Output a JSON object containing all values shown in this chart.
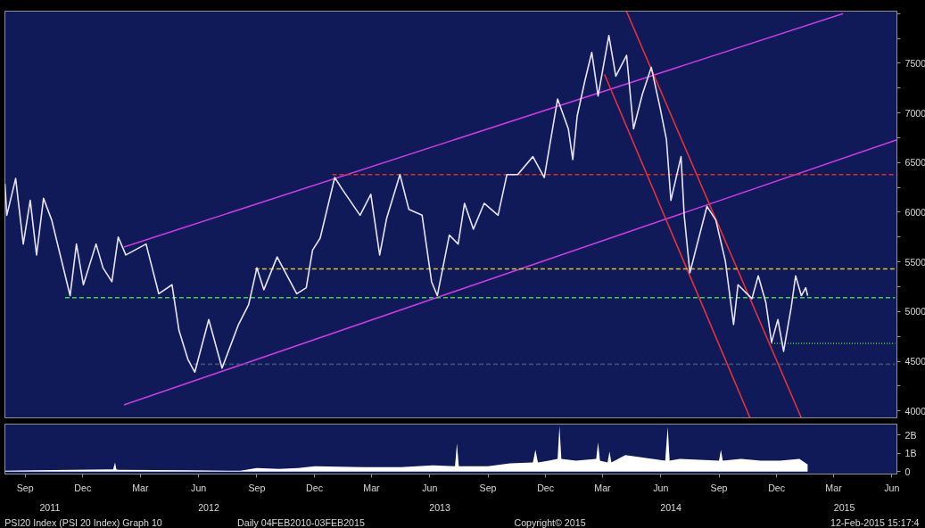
{
  "chart_data": [
    {
      "type": "line",
      "tick_labels": "y",
      "xlim": [
        "2011-08-14",
        "2015-06-23"
      ],
      "ylim": [
        3930,
        8025
      ],
      "yticks": [
        4000,
        {
          "value": 4250,
          "label": null
        },
        4500,
        {
          "value": 4750,
          "label": null
        },
        5000,
        {
          "value": 5250,
          "label": null
        },
        5500,
        {
          "value": 5750,
          "label": null
        },
        6000,
        {
          "value": 6250,
          "label": null
        },
        6500,
        {
          "value": 6750,
          "label": null
        },
        7000,
        {
          "value": 7250,
          "label": null
        },
        7500,
        {
          "value": 7750,
          "label": null
        },
        {
          "value": 8000,
          "label": null
        }
      ],
      "series": [
        {
          "type": "line",
          "color": "#c83ce0",
          "x": [
            "2012-02-18",
            "2015-03-30"
          ],
          "values": [
            5650,
            8000
          ]
        },
        {
          "type": "line",
          "color": "#c83ce0",
          "x": [
            "2012-02-18",
            "2015-06-23"
          ],
          "values": [
            4060,
            6730
          ]
        },
        {
          "type": "line",
          "color": "#e8303c",
          "x": [
            "2014-03-18",
            "2014-11-03"
          ],
          "values": [
            7390,
            3930
          ]
        },
        {
          "type": "line",
          "color": "#e8303c",
          "x": [
            "2014-04-22",
            "2015-01-23"
          ],
          "values": [
            8020,
            3930
          ]
        },
        {
          "type": "line",
          "color": "#d03030",
          "line_style": "dashed",
          "x": [
            "2013-01-12",
            "2015-06-20"
          ],
          "values": [
            6380,
            6380
          ]
        },
        {
          "type": "line",
          "color": "#d8c040",
          "line_style": "dashed",
          "x": [
            "2012-09-12",
            "2015-06-20"
          ],
          "values": [
            5430,
            5430
          ]
        },
        {
          "type": "line",
          "color": "#30e030",
          "line_style": "dashed",
          "x": [
            "2011-11-17",
            "2015-06-20"
          ],
          "values": [
            5140,
            5140
          ]
        },
        {
          "type": "line",
          "color": "#40e040",
          "line_style": "dotted",
          "x": [
            "2014-12-07",
            "2015-06-20"
          ],
          "values": [
            4680,
            4680
          ]
        },
        {
          "type": "line",
          "color": "#405070",
          "line_style": "dashed",
          "x": [
            "2012-06-07",
            "2015-06-20"
          ],
          "values": [
            4470,
            4470
          ]
        },
        {
          "type": "line",
          "color": "#e8e4f4",
          "x": [
            "2011-08-14",
            "2011-08-17",
            "2011-08-31",
            "2011-09-12",
            "2011-09-23",
            "2011-10-03",
            "2011-10-14",
            "2011-10-27",
            "2011-11-25",
            "2011-12-05",
            "2011-12-16",
            "2012-01-05",
            "2012-01-16",
            "2012-01-30",
            "2012-02-09",
            "2012-02-21",
            "2012-03-24",
            "2012-04-13",
            "2012-05-04",
            "2012-05-15",
            "2012-05-29",
            "2012-06-09",
            "2012-07-01",
            "2012-07-22",
            "2012-08-17",
            "2012-09-02",
            "2012-09-15",
            "2012-09-26",
            "2012-10-17",
            "2012-11-17",
            "2012-12-02",
            "2012-12-12",
            "2012-12-24",
            "2013-01-16",
            "2013-01-28",
            "2013-02-25",
            "2013-03-14",
            "2013-03-28",
            "2013-04-08",
            "2013-04-29",
            "2013-05-13",
            "2013-06-03",
            "2013-06-18",
            "2013-06-27",
            "2013-07-16",
            "2013-07-30",
            "2013-08-09",
            "2013-08-23",
            "2013-09-09",
            "2013-10-01",
            "2013-10-15",
            "2013-11-01",
            "2013-11-25",
            "2013-12-13",
            "2014-01-03",
            "2014-01-20",
            "2014-01-27",
            "2014-02-03",
            "2014-02-15",
            "2014-02-26",
            "2014-03-08",
            "2014-03-25",
            "2014-04-05",
            "2014-04-22",
            "2014-05-03",
            "2014-05-17",
            "2014-05-31",
            "2014-06-14",
            "2014-06-24",
            "2014-07-01",
            "2014-07-17",
            "2014-07-22",
            "2014-07-31",
            "2014-08-14",
            "2014-08-27",
            "2014-09-10",
            "2014-09-25",
            "2014-10-08",
            "2014-10-15",
            "2014-11-06",
            "2014-11-16",
            "2014-11-28",
            "2014-12-07",
            "2014-12-17",
            "2014-12-26",
            "2015-01-07",
            "2015-01-14",
            "2015-01-23",
            "2015-01-30",
            "2015-02-02"
          ],
          "values": [
            6290,
            5970,
            6340,
            5680,
            6120,
            5570,
            6140,
            5920,
            5160,
            5680,
            5270,
            5680,
            5440,
            5300,
            5750,
            5570,
            5680,
            5180,
            5270,
            4810,
            4520,
            4390,
            4920,
            4430,
            4870,
            5070,
            5440,
            5220,
            5550,
            5180,
            5240,
            5620,
            5740,
            6350,
            6230,
            5970,
            6180,
            5570,
            5940,
            6380,
            6030,
            5970,
            5300,
            5160,
            5770,
            5680,
            6090,
            5830,
            6090,
            5970,
            6380,
            6380,
            6560,
            6350,
            7140,
            6840,
            6530,
            6970,
            7320,
            7610,
            7170,
            7780,
            7370,
            7580,
            6840,
            7190,
            7460,
            7050,
            6730,
            6120,
            6560,
            5970,
            5390,
            5740,
            6060,
            5920,
            5510,
            4870,
            5270,
            5130,
            5360,
            5090,
            4690,
            4920,
            4600,
            5040,
            5360,
            5160,
            5240,
            5160
          ]
        }
      ]
    },
    {
      "type": "area",
      "color": "#ffffff",
      "xlim": [
        "2011-08-14",
        "2015-06-23"
      ],
      "ylim": [
        -0.13,
        2.6
      ],
      "yticks": [
        0,
        {
          "value": 1,
          "label": "1B"
        },
        {
          "value": 2,
          "label": "2B"
        }
      ],
      "xticks": [
        {
          "value": "2011-09-15",
          "label": "Sep"
        },
        {
          "value": "2011-12-15",
          "label": "Dec"
        },
        {
          "value": "2012-03-15",
          "label": "Mar"
        },
        {
          "value": "2012-06-15",
          "label": "Jun"
        },
        {
          "value": "2012-09-15",
          "label": "Sep"
        },
        {
          "value": "2012-12-15",
          "label": "Dec"
        },
        {
          "value": "2013-03-15",
          "label": "Mar"
        },
        {
          "value": "2013-06-15",
          "label": "Jun"
        },
        {
          "value": "2013-09-15",
          "label": "Sep"
        },
        {
          "value": "2013-12-15",
          "label": "Dec"
        },
        {
          "value": "2014-03-15",
          "label": "Mar"
        },
        {
          "value": "2014-06-15",
          "label": "Jun"
        },
        {
          "value": "2014-09-15",
          "label": "Sep"
        },
        {
          "value": "2014-12-15",
          "label": "Dec"
        },
        {
          "value": "2015-03-15",
          "label": "Mar"
        },
        {
          "value": "2015-06-15",
          "label": "Jun"
        }
      ],
      "x2lim": [
        "2011-08-14",
        "2015-06-23"
      ],
      "x2ticks": [
        {
          "value": "2011-10-24",
          "label": "2011"
        },
        {
          "value": "2012-07-01",
          "label": "2012"
        },
        {
          "value": "2013-07-01",
          "label": "2013"
        },
        {
          "value": "2014-07-01",
          "label": "2014"
        },
        {
          "value": "2015-04-01",
          "label": "2015"
        }
      ],
      "x": [
        "2011-08-14",
        "2011-10-01",
        "2011-12-01",
        "2012-02-01",
        "2012-02-04",
        "2012-02-06",
        "2012-02-09",
        "2012-06-01",
        "2012-08-20",
        "2012-09-15",
        "2012-10-20",
        "2012-11-20",
        "2012-12-15",
        "2013-03-01",
        "2013-05-01",
        "2013-06-20",
        "2013-07-25",
        "2013-07-28",
        "2013-07-31",
        "2013-09-15",
        "2013-10-20",
        "2013-11-25",
        "2013-11-29",
        "2013-12-03",
        "2013-12-20",
        "2014-01-03",
        "2014-01-06",
        "2014-01-09",
        "2014-02-01",
        "2014-03-05",
        "2014-03-08",
        "2014-03-11",
        "2014-03-23",
        "2014-03-26",
        "2014-03-29",
        "2014-04-20",
        "2014-06-22",
        "2014-06-26",
        "2014-06-29",
        "2014-07-15",
        "2014-09-15",
        "2014-09-18",
        "2014-09-21",
        "2014-10-20",
        "2014-11-20",
        "2014-12-20",
        "2015-01-20",
        "2015-02-02"
      ],
      "values": [
        0.05,
        0.08,
        0.1,
        0.12,
        0.5,
        0.12,
        0.1,
        0.08,
        0.05,
        0.2,
        0.15,
        0.2,
        0.3,
        0.25,
        0.25,
        0.35,
        0.3,
        1.55,
        0.3,
        0.3,
        0.45,
        0.5,
        1.2,
        0.5,
        0.6,
        0.7,
        2.5,
        0.7,
        0.6,
        0.7,
        1.6,
        0.6,
        0.5,
        1.1,
        0.5,
        0.9,
        0.6,
        2.45,
        0.6,
        0.7,
        0.6,
        1.2,
        0.6,
        0.7,
        0.6,
        0.6,
        0.7,
        0.4
      ],
      "annotations": [
        "PSI20 Index (PSI 20 Index) Graph 10",
        "Daily 04FEB2010-03FEB2015",
        "Copyright© 2015",
        "12-Feb-2015 15:17:4"
      ]
    }
  ]
}
